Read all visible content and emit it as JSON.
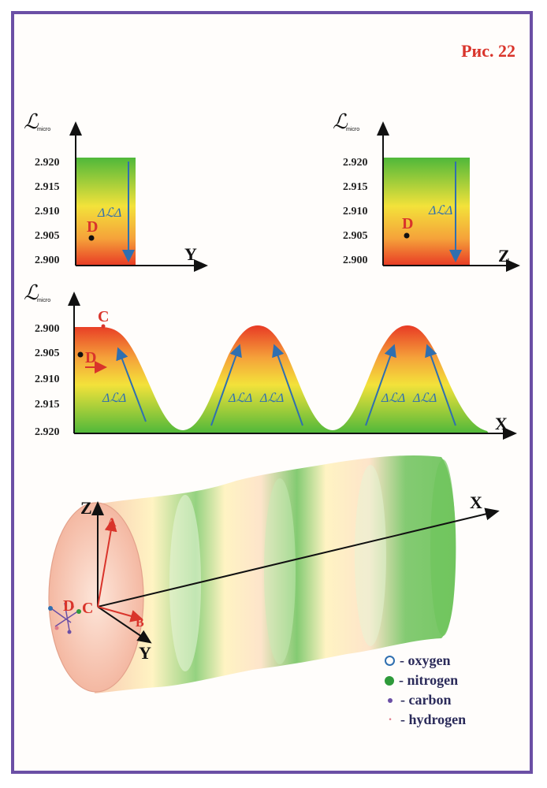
{
  "figure_label": "Рис. 22",
  "y_axis_label": "ℒ",
  "y_axis_subscript": "micro",
  "delta_label": "ΔℒΔ",
  "points": {
    "C": "C",
    "D": "D",
    "A": "A",
    "B": "B"
  },
  "axes": {
    "x": "X",
    "y": "Y",
    "z": "Z"
  },
  "top_left_plot": {
    "ticks": [
      "2.920",
      "2.915",
      "2.910",
      "2.905",
      "2.900"
    ],
    "axis": "Y"
  },
  "top_right_plot": {
    "ticks": [
      "2.920",
      "2.915",
      "2.910",
      "2.905",
      "2.900"
    ],
    "axis": "Z"
  },
  "middle_plot": {
    "ticks": [
      "2.900",
      "2.905",
      "2.910",
      "2.915",
      "2.920"
    ],
    "axis": "X"
  },
  "legend": [
    {
      "symbol": "oxygen",
      "label": "- oxygen",
      "color": "#2f6fb0"
    },
    {
      "symbol": "nitrogen",
      "label": "- nitrogen",
      "color": "#2e9a3a"
    },
    {
      "symbol": "carbon",
      "label": "- carbon",
      "color": "#6b4fa5"
    },
    {
      "symbol": "hydrogen",
      "label": "- hydrogen",
      "color": "#e07a8a"
    }
  ],
  "colors": {
    "frame": "#6b4fa5",
    "red": "#d9342b",
    "green": "#5cbf3a",
    "yellow": "#f3e23a",
    "orange": "#f0782a",
    "blue": "#2f6fb0"
  }
}
